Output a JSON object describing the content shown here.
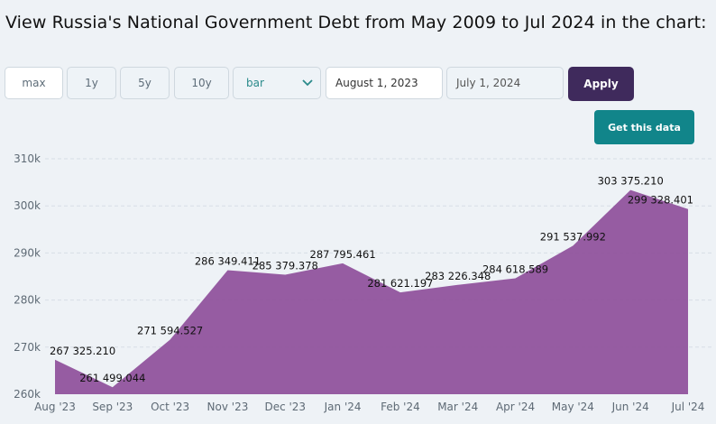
{
  "title": "View Russia's National Government Debt from May 2009 to Jul 2024 in the chart:",
  "controls": {
    "ranges": [
      "max",
      "1y",
      "5y",
      "10y"
    ],
    "chart_type": "bar",
    "start_date": "August 1, 2023",
    "end_date": "July 1, 2024",
    "apply_label": "Apply",
    "get_data_label": "Get this data"
  },
  "colors": {
    "area": "#8e4f9a",
    "apply": "#3f2a5c",
    "get_data": "#11858a"
  },
  "chart_data": {
    "type": "area",
    "categories": [
      "Aug '23",
      "Sep '23",
      "Oct '23",
      "Nov '23",
      "Dec '23",
      "Jan '24",
      "Feb '24",
      "Mar '24",
      "Apr '24",
      "May '24",
      "Jun '24",
      "Jul '24"
    ],
    "values": [
      267325.21,
      261499.044,
      271594.527,
      286349.411,
      285379.378,
      287795.461,
      281621.197,
      283226.348,
      284618.589,
      291537.992,
      303375.21,
      299328.401
    ],
    "labels": [
      "267 325.210",
      "261 499.044",
      "271 594.527",
      "286 349.411",
      "285 379.378",
      "287 795.461",
      "281 621.197",
      "283 226.348",
      "284 618.589",
      "291 537.992",
      "303 375.210",
      "299 328.401"
    ],
    "yticks": [
      "260k",
      "270k",
      "280k",
      "290k",
      "300k",
      "310k"
    ],
    "ytick_values": [
      260000,
      270000,
      280000,
      290000,
      300000,
      310000
    ],
    "ylim": [
      260000,
      310000
    ],
    "grid": true
  }
}
